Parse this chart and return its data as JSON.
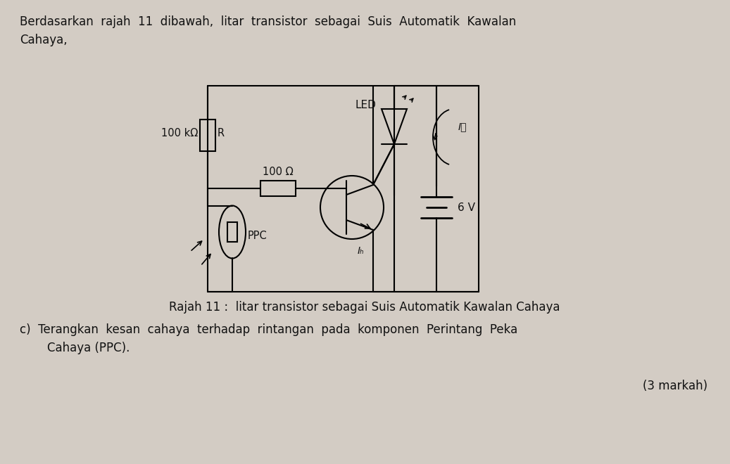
{
  "background_color": "#d3ccc4",
  "label_100k": "100 kΩ",
  "label_R": "R",
  "label_100": "100 Ω",
  "label_LED": "LED",
  "label_Ic": "IⲜ",
  "label_Ib": "Iₕ",
  "label_PPC": "PPC",
  "label_6V": "6 V",
  "caption_text": "Rajah 11 :  litar transistor sebagai Suis Automatik Kawalan Cahaya",
  "marks_text": "(3 markah)",
  "title_line1": "Berdasarkan  rajah  11  dibawah,  litar  transistor  sebagai  Suis  Automatik  Kawalan",
  "title_line2": "Cahaya,",
  "question_line1": "c)  Terangkan  kesan  cahaya  terhadap  rintangan  pada  komponen  Perintang  Peka",
  "question_line2": "    Cahaya (PPC)."
}
